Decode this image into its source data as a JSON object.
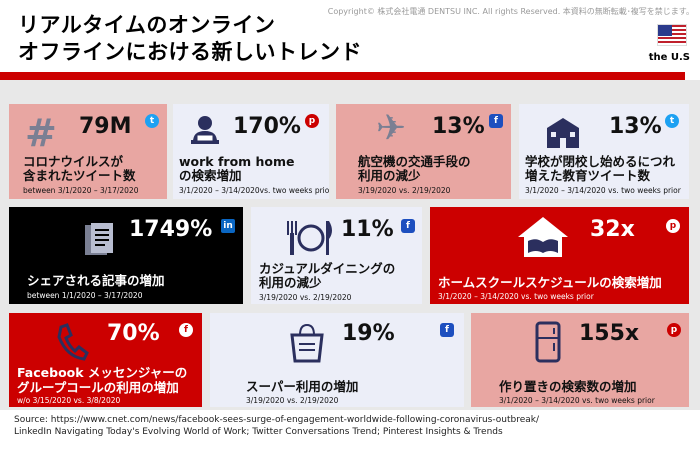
{
  "header": {
    "title_line1": "リアルタイムのオンライン",
    "title_line2": "オフラインにおける新しいトレンド",
    "copyright": "Copyright© 株式会社電通 DENTSU INC. All rights Reserved. 本資料の無断転載･複写を禁じます。",
    "region": "the U.S"
  },
  "tiles": [
    {
      "value": "79M",
      "label1": "コロナウイルスが",
      "label2": "含まれたツイート数",
      "date": "between 3/1/2020 – 3/17/2020",
      "source_icon": "twitter-icon",
      "icon": "hashtag-icon"
    },
    {
      "value": "170%",
      "label1": "work from home",
      "label2": "の検索増加",
      "date": "3/1/2020 – 3/14/2020vs. two weeks prior",
      "source_icon": "pinterest-icon",
      "icon": "remote-worker-icon"
    },
    {
      "value": "13%",
      "label1": "航空機の交通手段の",
      "label2": "利用の減少",
      "date": "3/19/2020 vs. 2/19/2020",
      "source_icon": "foursquare-icon",
      "icon": "airplane-icon"
    },
    {
      "value": "13%",
      "label1": "学校が閉校し始めるにつれ",
      "label2": "増えた教育ツイート数",
      "date": "3/1/2020 – 3/14/2020 vs. two weeks prior",
      "source_icon": "twitter-icon",
      "icon": "school-icon"
    },
    {
      "value": "1749%",
      "label1": "シェアされる記事の増加",
      "date": "between 1/1/2020 – 3/17/2020",
      "source_icon": "linkedin-icon",
      "icon": "article-icon"
    },
    {
      "value": "11%",
      "label1": "カジュアルダイニングの",
      "label2": "利用の減少",
      "date": "3/19/2020 vs. 2/19/2020",
      "source_icon": "foursquare-icon",
      "icon": "dining-icon"
    },
    {
      "value": "32x",
      "label1": "ホームスクールスケジュールの検索増加",
      "date": "3/1/2020 – 3/14/2020 vs. two weeks prior",
      "source_icon": "pinterest-icon",
      "icon": "open-book-house-icon"
    },
    {
      "value": "70%",
      "label1": "Facebook メッセンジャーの",
      "label2": "グループコールの利用の増加",
      "date": "w/o 3/15/2020 vs. 3/8/2020",
      "source_icon": "facebook-icon",
      "icon": "phone-icon"
    },
    {
      "value": "19%",
      "label1": "スーパー利用の増加",
      "date": "3/19/2020 vs. 2/19/2020",
      "source_icon": "foursquare-icon",
      "icon": "grocery-bag-icon"
    },
    {
      "value": "155x",
      "label1": "作り置きの検索数の増加",
      "date": "3/1/2020 – 3/14/2020 vs. two weeks prior",
      "source_icon": "pinterest-icon",
      "icon": "refrigerator-icon"
    }
  ],
  "source": {
    "line1": "Source: https://www.cnet.com/news/facebook-sees-surge-of-engagement-worldwide-following-coronavirus-outbreak/",
    "line2": "LinkedIn Navigating Today's Evolving World of Work; Twitter Conversations Trend; Pinterest Insights & Trends"
  },
  "colors": {
    "accent_red": "#cc0000",
    "pink": "#e8a6a2",
    "light": "#eceef8",
    "black": "#000000"
  }
}
